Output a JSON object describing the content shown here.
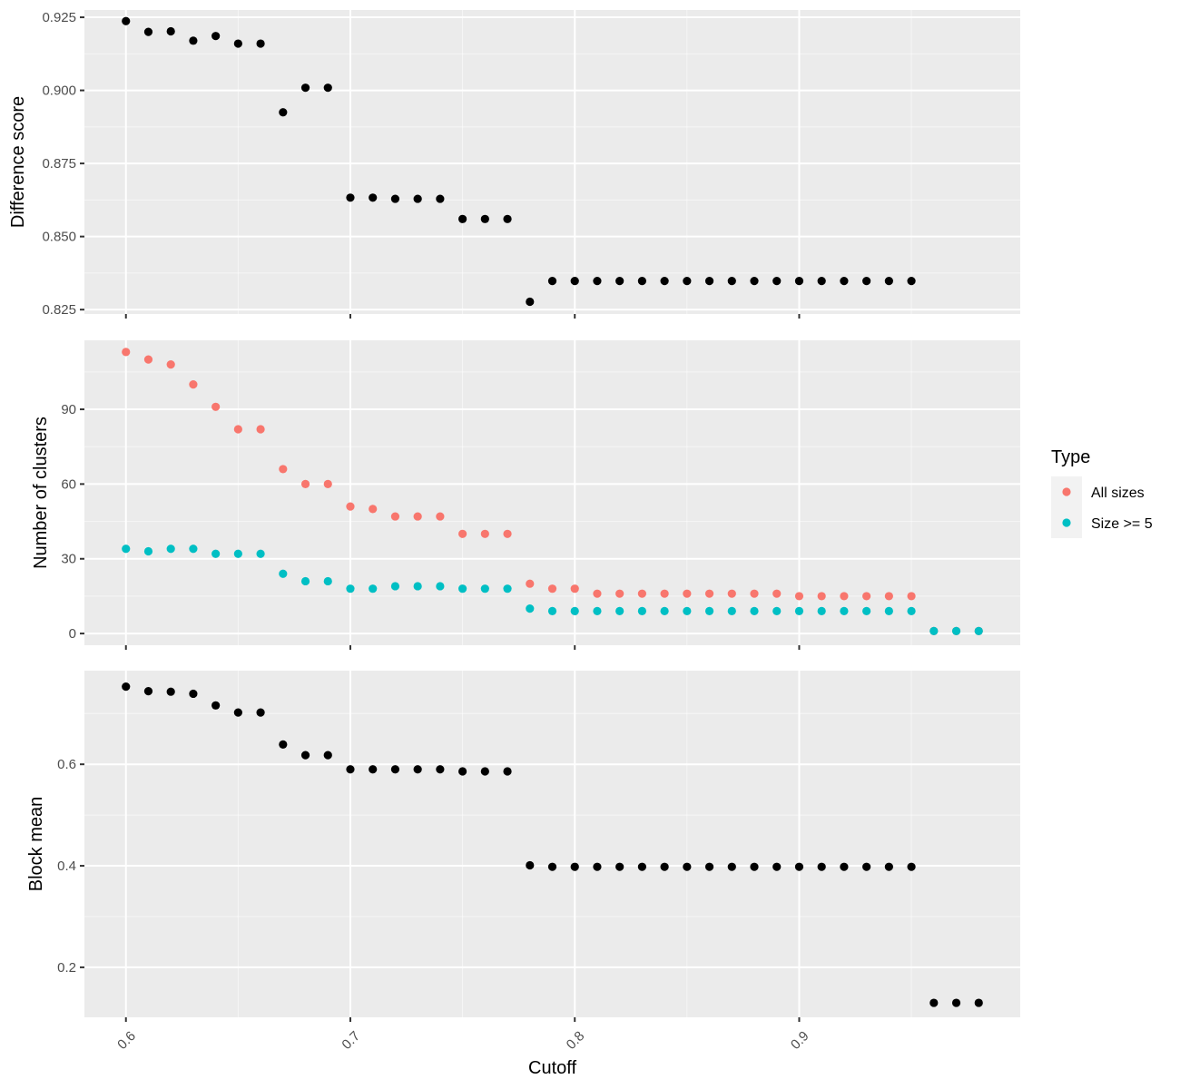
{
  "chart_data": [
    {
      "type": "scatter",
      "title": "",
      "xlabel": "",
      "ylabel": "Difference score",
      "xlim": [
        0.5815,
        0.9985
      ],
      "ylim": [
        0.8235,
        0.9275
      ],
      "yticks": [
        0.825,
        0.85,
        0.875,
        0.9,
        0.925
      ],
      "ytick_labels": [
        "0.825",
        "0.850",
        "0.875",
        "0.900",
        "0.925"
      ],
      "grid": true,
      "series": [
        {
          "color": "#000000",
          "x": [
            0.6,
            0.61,
            0.62,
            0.63,
            0.64,
            0.65,
            0.66,
            0.67,
            0.68,
            0.69,
            0.7,
            0.71,
            0.72,
            0.73,
            0.74,
            0.75,
            0.76,
            0.77,
            0.78,
            0.79,
            0.8,
            0.81,
            0.82,
            0.83,
            0.84,
            0.85,
            0.86,
            0.87,
            0.88,
            0.89,
            0.9,
            0.91,
            0.92,
            0.93,
            0.94,
            0.95
          ],
          "y": [
            0.9237,
            0.92,
            0.9202,
            0.917,
            0.9186,
            0.916,
            0.916,
            0.8925,
            0.9009,
            0.9009,
            0.8633,
            0.8633,
            0.8629,
            0.8629,
            0.8629,
            0.856,
            0.856,
            0.856,
            0.8277,
            0.8348,
            0.8348,
            0.8348,
            0.8348,
            0.8348,
            0.8348,
            0.8348,
            0.8348,
            0.8348,
            0.8348,
            0.8348,
            0.8348,
            0.8348,
            0.8348,
            0.8348,
            0.8348,
            0.8348
          ]
        }
      ]
    },
    {
      "type": "scatter",
      "title": "",
      "xlabel": "",
      "ylabel": "Number of clusters",
      "xlim": [
        0.5815,
        0.9985
      ],
      "ylim": [
        -4.7,
        117.7
      ],
      "yticks": [
        0,
        30,
        60,
        90
      ],
      "ytick_labels": [
        "0",
        "30",
        "60",
        "90"
      ],
      "grid": true,
      "legend": {
        "title": "Type",
        "placement": "right"
      },
      "series": [
        {
          "name": "All sizes",
          "color": "#F8766D",
          "x": [
            0.6,
            0.61,
            0.62,
            0.63,
            0.64,
            0.65,
            0.66,
            0.67,
            0.68,
            0.69,
            0.7,
            0.71,
            0.72,
            0.73,
            0.74,
            0.75,
            0.76,
            0.77,
            0.78,
            0.79,
            0.8,
            0.81,
            0.82,
            0.83,
            0.84,
            0.85,
            0.86,
            0.87,
            0.88,
            0.89,
            0.9,
            0.91,
            0.92,
            0.93,
            0.94,
            0.95,
            0.96,
            0.97,
            0.98
          ],
          "y": [
            113,
            110,
            108,
            100,
            91,
            82,
            82,
            66,
            60,
            60,
            51,
            50,
            47,
            47,
            47,
            40,
            40,
            40,
            20,
            18,
            18,
            16,
            16,
            16,
            16,
            16,
            16,
            16,
            16,
            16,
            15,
            15,
            15,
            15,
            15,
            15,
            1,
            1,
            1
          ]
        },
        {
          "name": "Size >= 5",
          "color": "#00BFC4",
          "x": [
            0.6,
            0.61,
            0.62,
            0.63,
            0.64,
            0.65,
            0.66,
            0.67,
            0.68,
            0.69,
            0.7,
            0.71,
            0.72,
            0.73,
            0.74,
            0.75,
            0.76,
            0.77,
            0.78,
            0.79,
            0.8,
            0.81,
            0.82,
            0.83,
            0.84,
            0.85,
            0.86,
            0.87,
            0.88,
            0.89,
            0.9,
            0.91,
            0.92,
            0.93,
            0.94,
            0.95,
            0.96,
            0.97,
            0.98
          ],
          "y": [
            34,
            33,
            34,
            34,
            32,
            32,
            32,
            24,
            21,
            21,
            18,
            18,
            19,
            19,
            19,
            18,
            18,
            18,
            10,
            9,
            9,
            9,
            9,
            9,
            9,
            9,
            9,
            9,
            9,
            9,
            9,
            9,
            9,
            9,
            9,
            9,
            1,
            1,
            1
          ]
        }
      ]
    },
    {
      "type": "scatter",
      "title": "",
      "xlabel": "Cutoff",
      "ylabel": "Block mean",
      "xlim": [
        0.5815,
        0.9985
      ],
      "ylim": [
        0.1015,
        0.7845
      ],
      "yticks": [
        0.2,
        0.4,
        0.6
      ],
      "ytick_labels": [
        "0.2",
        "0.4",
        "0.6"
      ],
      "xticks": [
        0.6,
        0.7,
        0.8,
        0.9
      ],
      "xtick_labels": [
        "0.6",
        "0.7",
        "0.8",
        "0.9"
      ],
      "grid": true,
      "series": [
        {
          "color": "#000000",
          "x": [
            0.6,
            0.61,
            0.62,
            0.63,
            0.64,
            0.65,
            0.66,
            0.67,
            0.68,
            0.69,
            0.7,
            0.71,
            0.72,
            0.73,
            0.74,
            0.75,
            0.76,
            0.77,
            0.78,
            0.79,
            0.8,
            0.81,
            0.82,
            0.83,
            0.84,
            0.85,
            0.86,
            0.87,
            0.88,
            0.89,
            0.9,
            0.91,
            0.92,
            0.93,
            0.94,
            0.95,
            0.96,
            0.97,
            0.98
          ],
          "y": [
            0.753,
            0.744,
            0.743,
            0.739,
            0.716,
            0.702,
            0.702,
            0.639,
            0.618,
            0.618,
            0.59,
            0.59,
            0.59,
            0.59,
            0.59,
            0.586,
            0.586,
            0.586,
            0.401,
            0.398,
            0.398,
            0.398,
            0.398,
            0.398,
            0.398,
            0.398,
            0.398,
            0.398,
            0.398,
            0.398,
            0.398,
            0.398,
            0.398,
            0.398,
            0.398,
            0.398,
            0.13,
            0.13,
            0.13
          ]
        }
      ]
    }
  ]
}
